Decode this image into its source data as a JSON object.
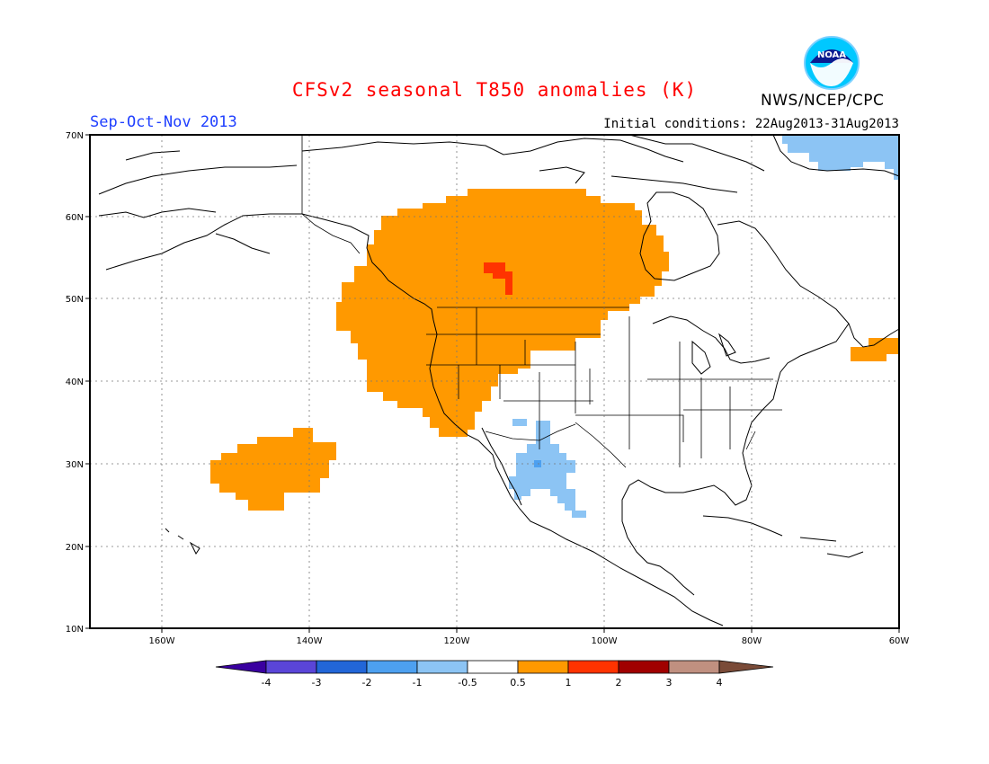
{
  "header": {
    "title": "CFSv2 seasonal T850 anomalies (K)",
    "season": "Sep-Oct-Nov 2013",
    "initial_conditions": "Initial conditions: 22Aug2013-31Aug2013",
    "org": "NWS/NCEP/CPC",
    "logo_text": "NOAA"
  },
  "map": {
    "region": "North America",
    "lon_range": [
      -172,
      -60
    ],
    "lat_range": [
      10,
      70
    ],
    "lon_ticks": [
      "160W",
      "140W",
      "120W",
      "100W",
      "80W",
      "60W"
    ],
    "lat_ticks": [
      "10N",
      "20N",
      "30N",
      "40N",
      "50N",
      "60N",
      "70N"
    ],
    "grid": true
  },
  "colorbar": {
    "labels": [
      "-4",
      "-3",
      "-2",
      "-1",
      "-0.5",
      "0.5",
      "1",
      "2",
      "3",
      "4"
    ],
    "colors": [
      "#3a00a0",
      "#5a45d8",
      "#2266d8",
      "#4da0f0",
      "#8cc4f4",
      "#ffffff",
      "#ff9900",
      "#ff3300",
      "#a00000",
      "#c09080",
      "#7a4b38"
    ]
  }
}
